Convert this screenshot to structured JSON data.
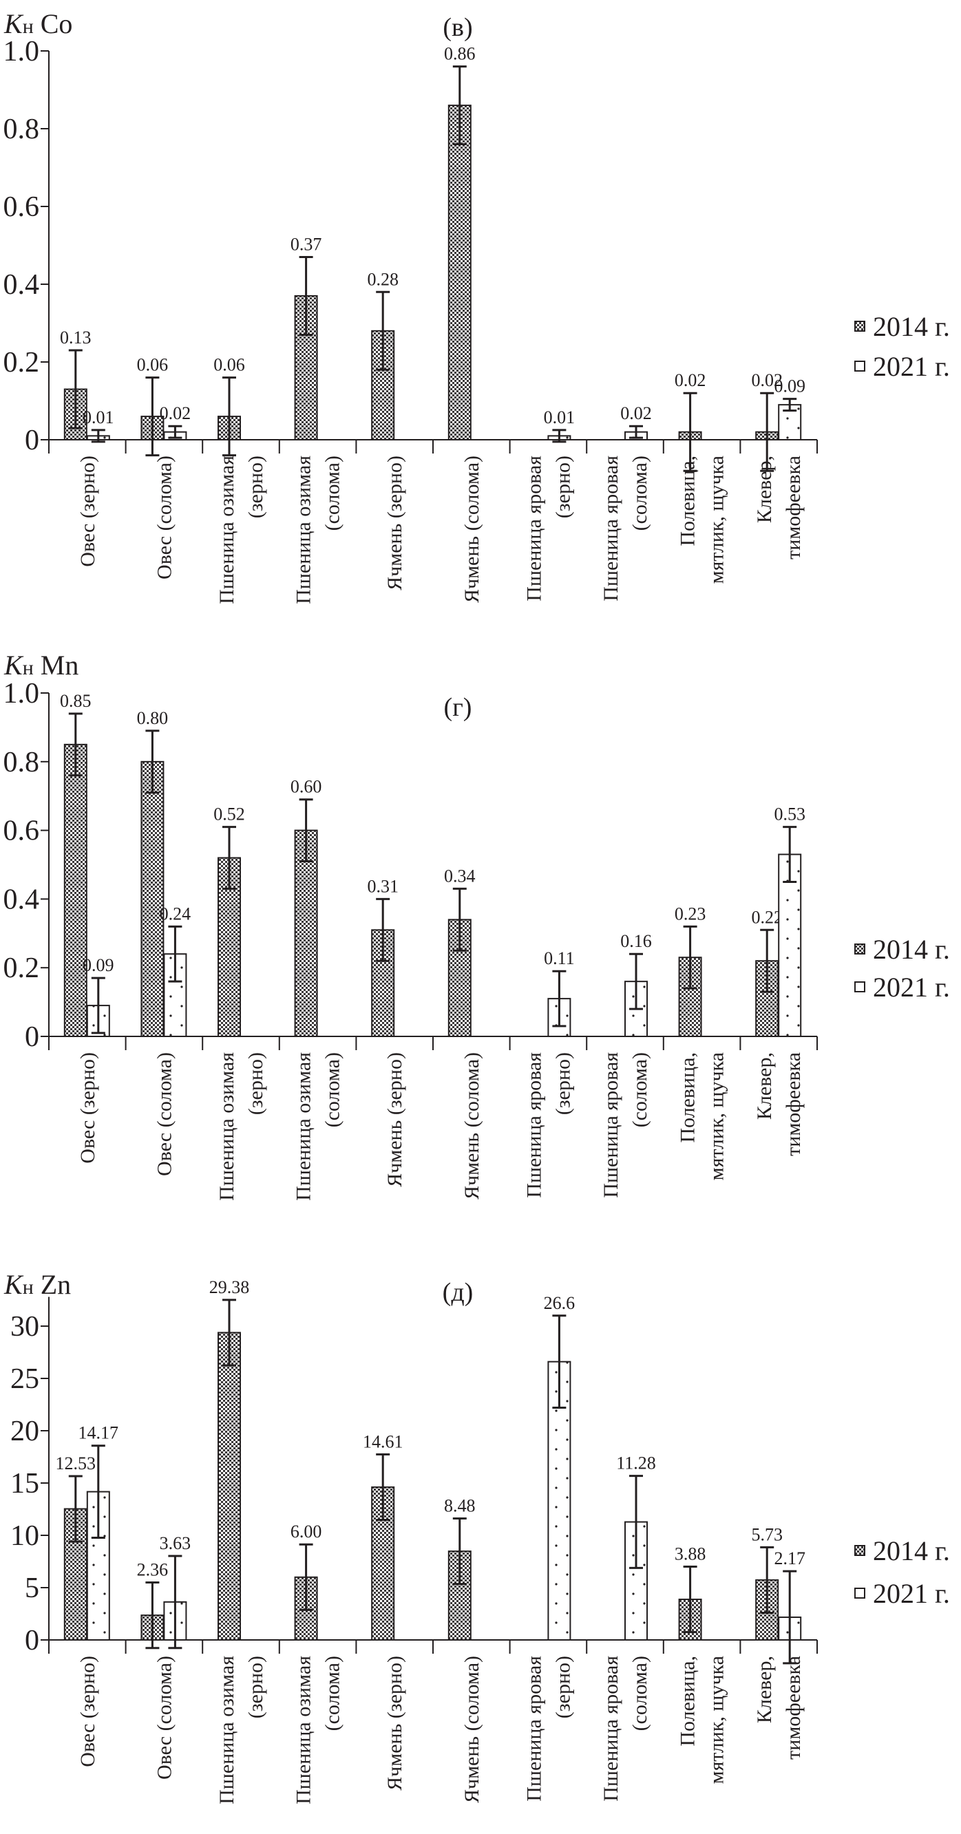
{
  "colors": {
    "ink": "#231f20",
    "fill_2014": "#3a3738",
    "fill_2021": "#ffffff"
  },
  "legend": [
    "2014 г.",
    "2021 г."
  ],
  "categories": [
    [
      "Овес (зерно)"
    ],
    [
      "Овес (солома)"
    ],
    [
      "Пшеница озимая",
      "(зерно)"
    ],
    [
      "Пшеница озимая",
      "(солома)"
    ],
    [
      "Ячмень (зерно)"
    ],
    [
      "Ячмень (солома)"
    ],
    [
      "Пшеница яровая",
      "(зерно)"
    ],
    [
      "Пшеница яровая",
      "(солома)"
    ],
    [
      "Полевица,",
      "мятлик, щучка"
    ],
    [
      "Клевер,",
      "тимофеевка"
    ]
  ],
  "chart_data": [
    {
      "type": "bar",
      "panel": "(в)",
      "ylabel_var": "K",
      "ylabel_sub": "н",
      "ylabel_element": "Co",
      "ylim": [
        0,
        1.0
      ],
      "yticks": [
        0,
        0.2,
        0.4,
        0.6,
        0.8,
        1.0
      ],
      "ytick_labels": [
        "0",
        "0.2",
        "0.4",
        "0.6",
        "0.8",
        "1.0"
      ],
      "legend_position": "right",
      "series": [
        {
          "name": "2014 г.",
          "values": [
            0.13,
            0.06,
            0.06,
            0.37,
            0.28,
            0.86,
            null,
            null,
            0.02,
            0.02
          ],
          "errors": [
            0.1,
            0.1,
            0.1,
            0.1,
            0.1,
            0.1,
            null,
            null,
            0.1,
            0.1
          ],
          "labels": [
            "0.13",
            "0.06",
            "0.06",
            "0.37",
            "0.28",
            "0.86",
            null,
            null,
            "0.02",
            "0.02"
          ]
        },
        {
          "name": "2021 г.",
          "values": [
            0.01,
            0.02,
            null,
            null,
            null,
            null,
            0.01,
            0.02,
            null,
            0.09
          ],
          "errors": [
            0.015,
            0.015,
            null,
            null,
            null,
            null,
            0.015,
            0.015,
            null,
            0.015
          ],
          "labels": [
            "0.01",
            "0.02",
            null,
            null,
            null,
            null,
            "0.01",
            "0.02",
            null,
            "0.09"
          ]
        }
      ]
    },
    {
      "type": "bar",
      "panel": "(г)",
      "ylabel_var": "K",
      "ylabel_sub": "н",
      "ylabel_element": "Mn",
      "ylim": [
        0,
        1.0
      ],
      "yticks": [
        0,
        0.2,
        0.4,
        0.6,
        0.8,
        1.0
      ],
      "ytick_labels": [
        "0",
        "0.2",
        "0.4",
        "0.6",
        "0.8",
        "1.0"
      ],
      "legend_position": "right",
      "series": [
        {
          "name": "2014 г.",
          "values": [
            0.85,
            0.8,
            0.52,
            0.6,
            0.31,
            0.34,
            null,
            null,
            0.23,
            0.22
          ],
          "errors": [
            0.09,
            0.09,
            0.09,
            0.09,
            0.09,
            0.09,
            null,
            null,
            0.09,
            0.09
          ],
          "labels": [
            "0.85",
            "0.80",
            "0.52",
            "0.60",
            "0.31",
            "0.34",
            null,
            null,
            "0.23",
            "0.22"
          ]
        },
        {
          "name": "2021 г.",
          "values": [
            0.09,
            0.24,
            null,
            null,
            null,
            null,
            0.11,
            0.16,
            null,
            0.53
          ],
          "errors": [
            0.08,
            0.08,
            null,
            null,
            null,
            null,
            0.08,
            0.08,
            null,
            0.08
          ],
          "labels": [
            "0.09",
            "0.24",
            null,
            null,
            null,
            null,
            "0.11",
            "0.16",
            null,
            "0.53"
          ]
        }
      ]
    },
    {
      "type": "bar",
      "panel": "(д)",
      "ylabel_var": "K",
      "ylabel_sub": "н",
      "ylabel_element": "Zn",
      "ylim": [
        0,
        32.8
      ],
      "yticks": [
        0,
        5,
        10,
        15,
        20,
        25,
        30
      ],
      "ytick_labels": [
        "0",
        "5",
        "10",
        "15",
        "20",
        "25",
        "30"
      ],
      "legend_position": "right",
      "series": [
        {
          "name": "2014 г.",
          "values": [
            12.53,
            2.36,
            29.38,
            6.0,
            14.61,
            8.48,
            null,
            null,
            3.88,
            5.73
          ],
          "errors": [
            3.13,
            3.13,
            3.13,
            3.13,
            3.13,
            3.13,
            null,
            null,
            3.13,
            3.13
          ],
          "labels": [
            "12.53",
            "2.36",
            "29.38",
            "6.00",
            "14.61",
            "8.48",
            null,
            null,
            "3.88",
            "5.73"
          ]
        },
        {
          "name": "2021 г.",
          "values": [
            14.17,
            3.63,
            null,
            null,
            null,
            null,
            26.6,
            11.28,
            null,
            2.17
          ],
          "errors": [
            4.4,
            4.4,
            null,
            null,
            null,
            null,
            4.4,
            4.4,
            null,
            4.4
          ],
          "labels": [
            "14.17",
            "3.63",
            null,
            null,
            null,
            null,
            "26.6",
            "11.28",
            null,
            "2.17"
          ]
        }
      ]
    }
  ]
}
